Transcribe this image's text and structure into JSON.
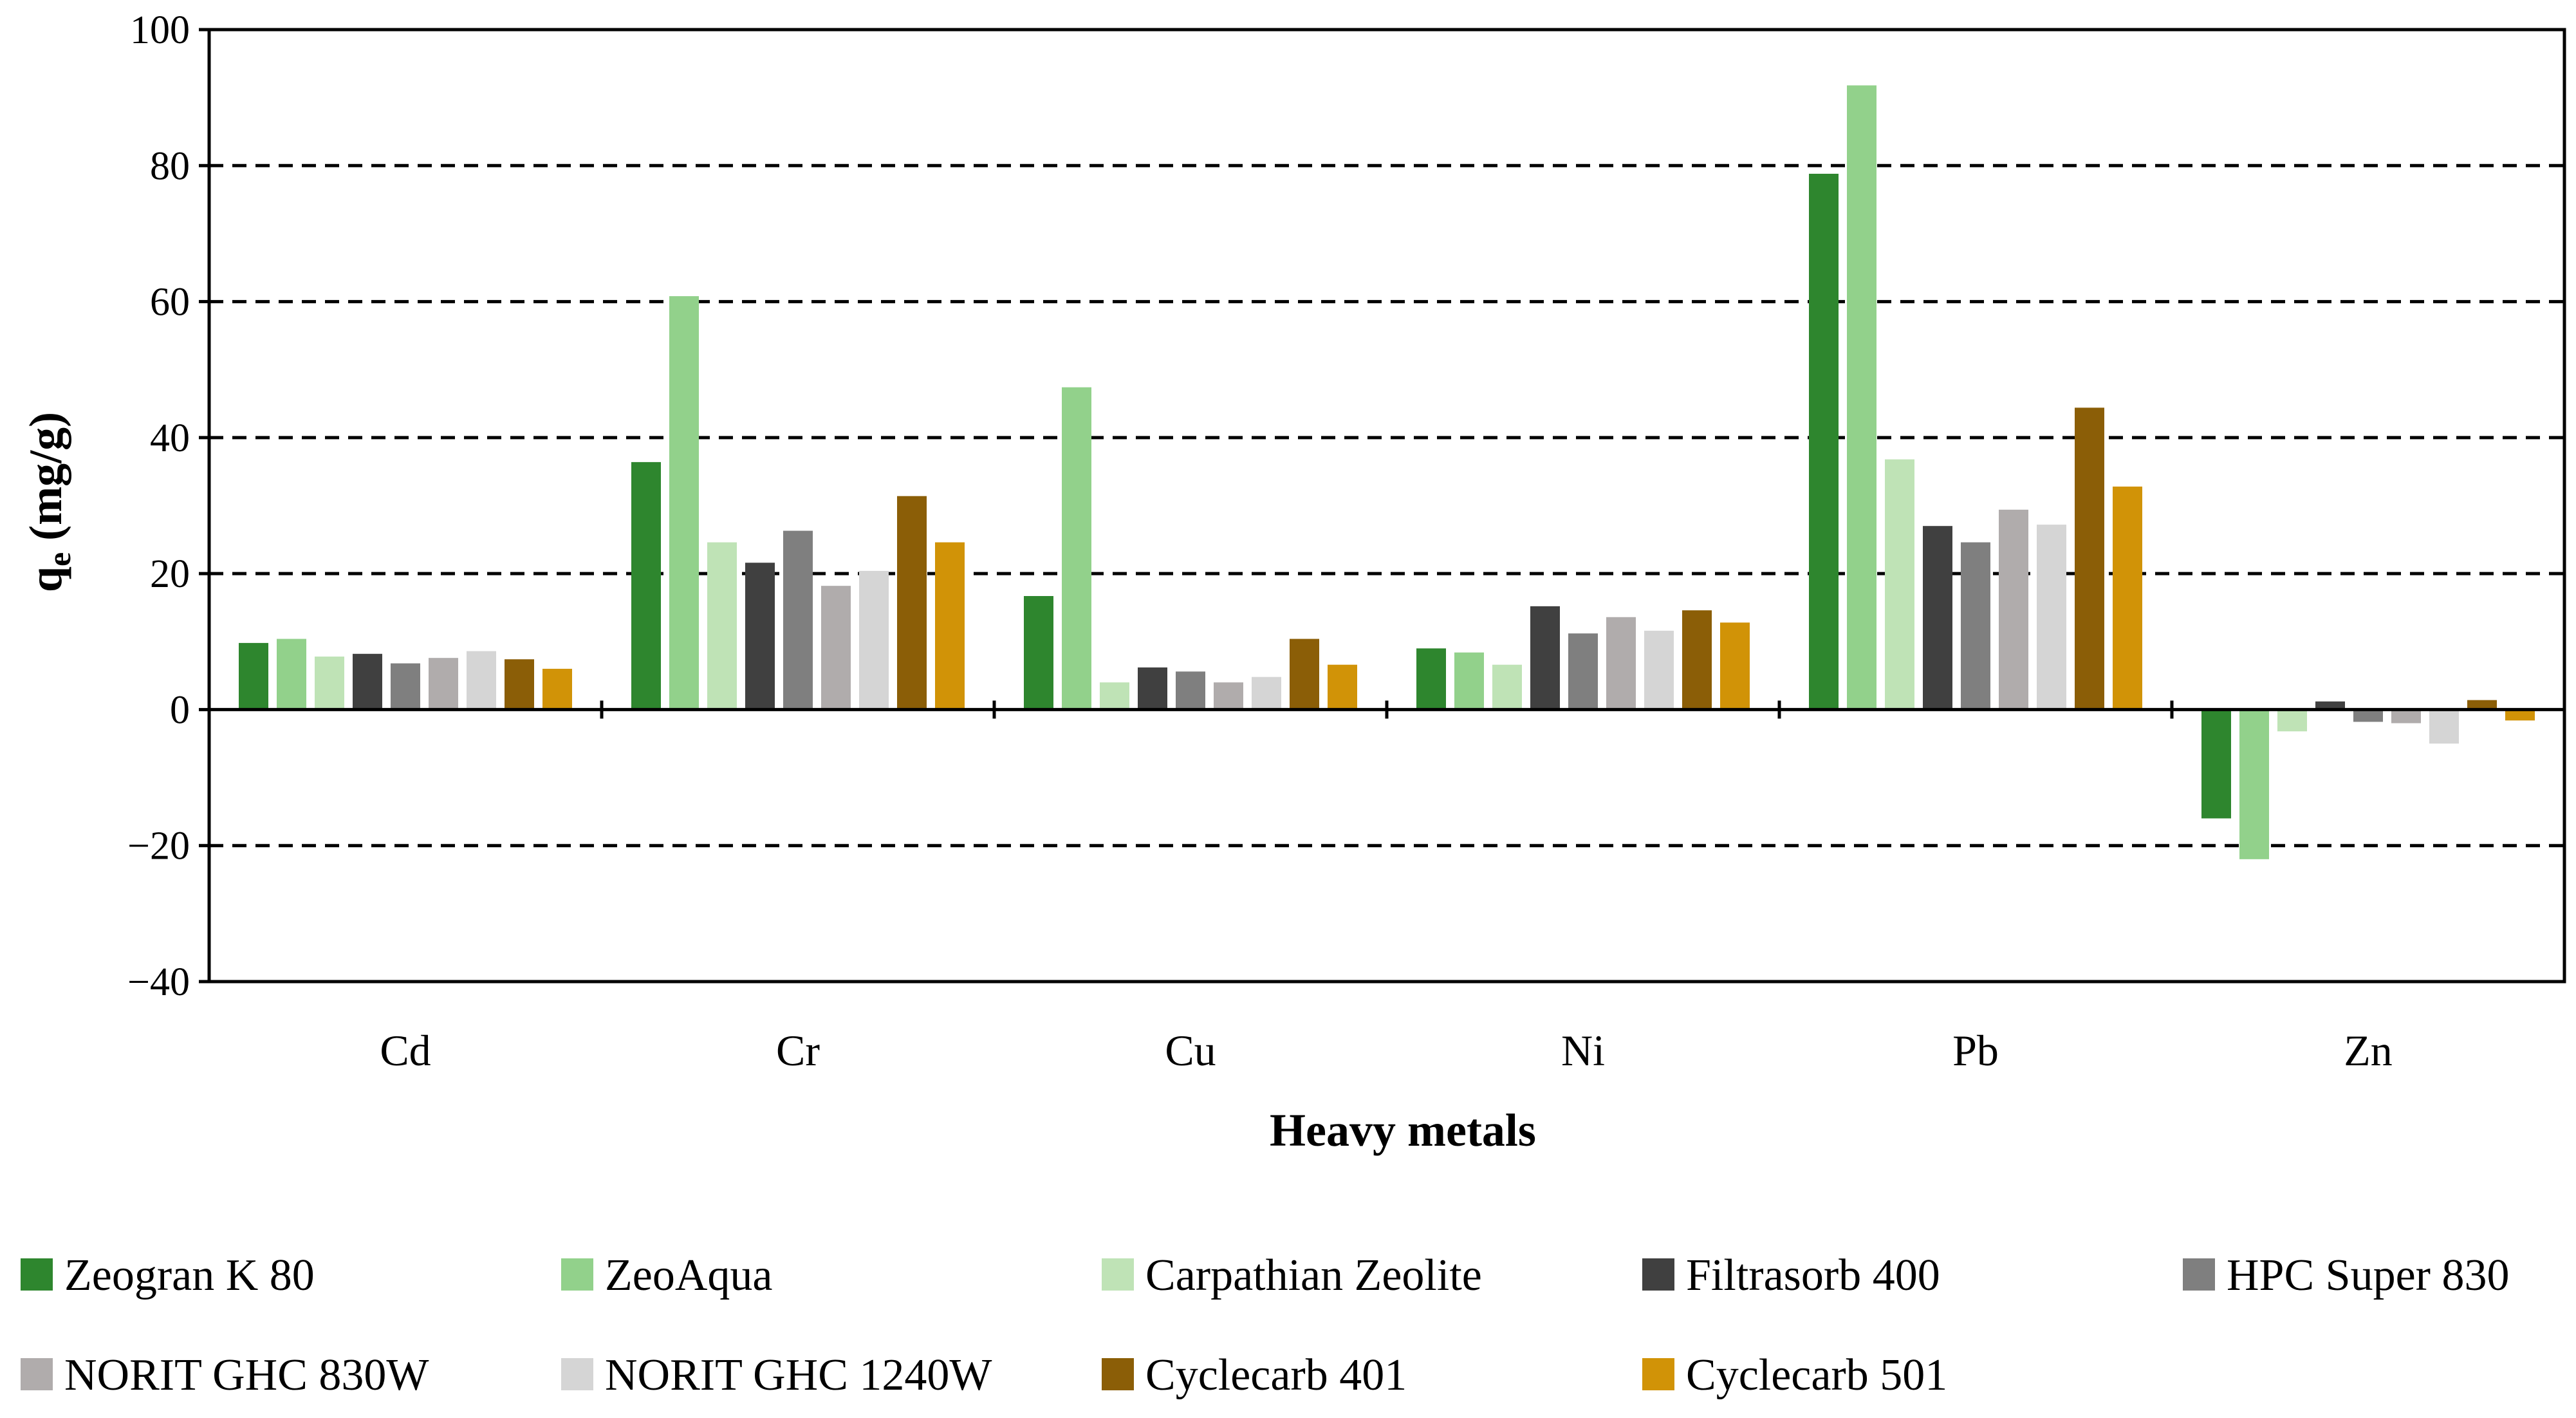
{
  "chart_data": {
    "type": "bar",
    "title": "",
    "xlabel": "Heavy metals",
    "ylabel": "q",
    "ylabel_subscript": "e",
    "ylabel_units": " (mg/g)",
    "ylim": [
      -40,
      100
    ],
    "yticks": [
      -40,
      -20,
      0,
      20,
      40,
      60,
      80,
      100
    ],
    "ytick_labels": [
      "−40",
      "−20",
      "0",
      "20",
      "40",
      "60",
      "80",
      "100"
    ],
    "grid": "dashed horizontal",
    "legend_position": "bottom",
    "categories": [
      "Cd",
      "Cr",
      "Cu",
      "Ni",
      "Pb",
      "Zn"
    ],
    "series": [
      {
        "name": "Zeogran K 80",
        "color": "#2e862e",
        "values": [
          9.8,
          36.4,
          16.7,
          9.0,
          78.8,
          -16.0
        ]
      },
      {
        "name": "ZeoAqua",
        "color": "#92d18b",
        "values": [
          10.4,
          60.8,
          47.4,
          8.4,
          91.8,
          -22.0
        ]
      },
      {
        "name": "Carpathian Zeolite",
        "color": "#bfe3b6",
        "values": [
          7.8,
          24.6,
          4.0,
          6.6,
          36.8,
          -3.2
        ]
      },
      {
        "name": "Filtrasorb 400",
        "color": "#404040",
        "values": [
          8.2,
          21.6,
          6.2,
          15.2,
          27.0,
          1.2
        ]
      },
      {
        "name": "HPC Super 830",
        "color": "#7f7f7f",
        "values": [
          6.8,
          26.3,
          5.6,
          11.2,
          24.6,
          -1.8
        ]
      },
      {
        "name": "NORIT GHC 830W",
        "color": "#b0acac",
        "values": [
          7.6,
          18.2,
          4.0,
          13.6,
          29.4,
          -2.0
        ]
      },
      {
        "name": "NORIT GHC 1240W",
        "color": "#d5d5d5",
        "values": [
          8.6,
          20.4,
          4.8,
          11.6,
          27.2,
          -5.0
        ]
      },
      {
        "name": "Cyclecarb 401",
        "color": "#8b5e07",
        "values": [
          7.4,
          31.4,
          10.4,
          14.6,
          44.4,
          1.4
        ]
      },
      {
        "name": "Cyclecarb 501",
        "color": "#d19307",
        "values": [
          6.0,
          24.6,
          6.6,
          12.8,
          32.8,
          -1.6
        ]
      }
    ]
  }
}
